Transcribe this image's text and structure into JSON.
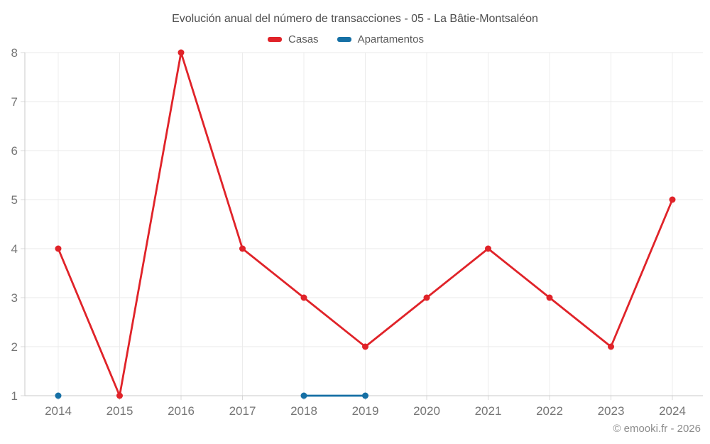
{
  "footer": {
    "copyright": "© emooki.fr - 2026"
  },
  "chart_data": {
    "type": "line",
    "title": "Evolución anual del número de transacciones - 05 - La Bâtie-Montsaléon",
    "categories": [
      "2014",
      "2015",
      "2016",
      "2017",
      "2018",
      "2019",
      "2020",
      "2021",
      "2022",
      "2023",
      "2024"
    ],
    "series": [
      {
        "name": "Casas",
        "color": "#e02329",
        "values": [
          4,
          1,
          8,
          4,
          3,
          2,
          3,
          4,
          3,
          2,
          5
        ]
      },
      {
        "name": "Apartamentos",
        "color": "#1670a5",
        "values": [
          1,
          null,
          null,
          null,
          1,
          1,
          null,
          null,
          null,
          null,
          null
        ]
      }
    ],
    "ylim": [
      1,
      8
    ],
    "yticks": [
      1,
      2,
      3,
      4,
      5,
      6,
      7,
      8
    ],
    "grid": true,
    "legend_position": "top",
    "xlabel": "",
    "ylabel": ""
  }
}
